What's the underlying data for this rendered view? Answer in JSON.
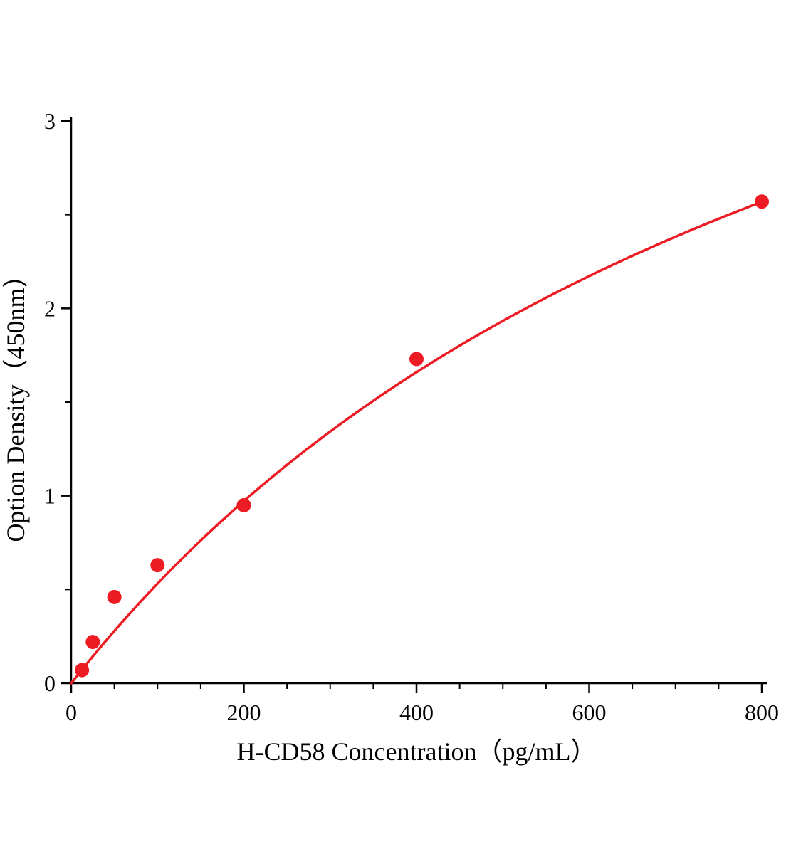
{
  "figure": {
    "background_color": "#ffffff",
    "axis_color": "#000000"
  },
  "chart_data": {
    "type": "scatter",
    "title": "",
    "xlabel": "H-CD58 Concentration（pg/mL）",
    "ylabel": "Option Density（450nm）",
    "x": [
      12.5,
      25,
      50,
      100,
      200,
      400,
      800
    ],
    "y": [
      0.07,
      0.22,
      0.46,
      0.63,
      0.95,
      1.73,
      2.57
    ],
    "xlim": [
      0,
      800
    ],
    "ylim": [
      0,
      3
    ],
    "x_ticks": [
      0,
      200,
      400,
      600,
      800
    ],
    "y_ticks": [
      0,
      1,
      2,
      3
    ],
    "x_minor_step": 50,
    "y_minor_step": 0.5,
    "grid": false,
    "legend_position": "none",
    "marker_color": "#ed1c24",
    "line_color": "#ed1c24",
    "marker_radius": 10,
    "fit": {
      "type": "michaelis-menten",
      "vmax": 5.68,
      "k": 969
    }
  }
}
